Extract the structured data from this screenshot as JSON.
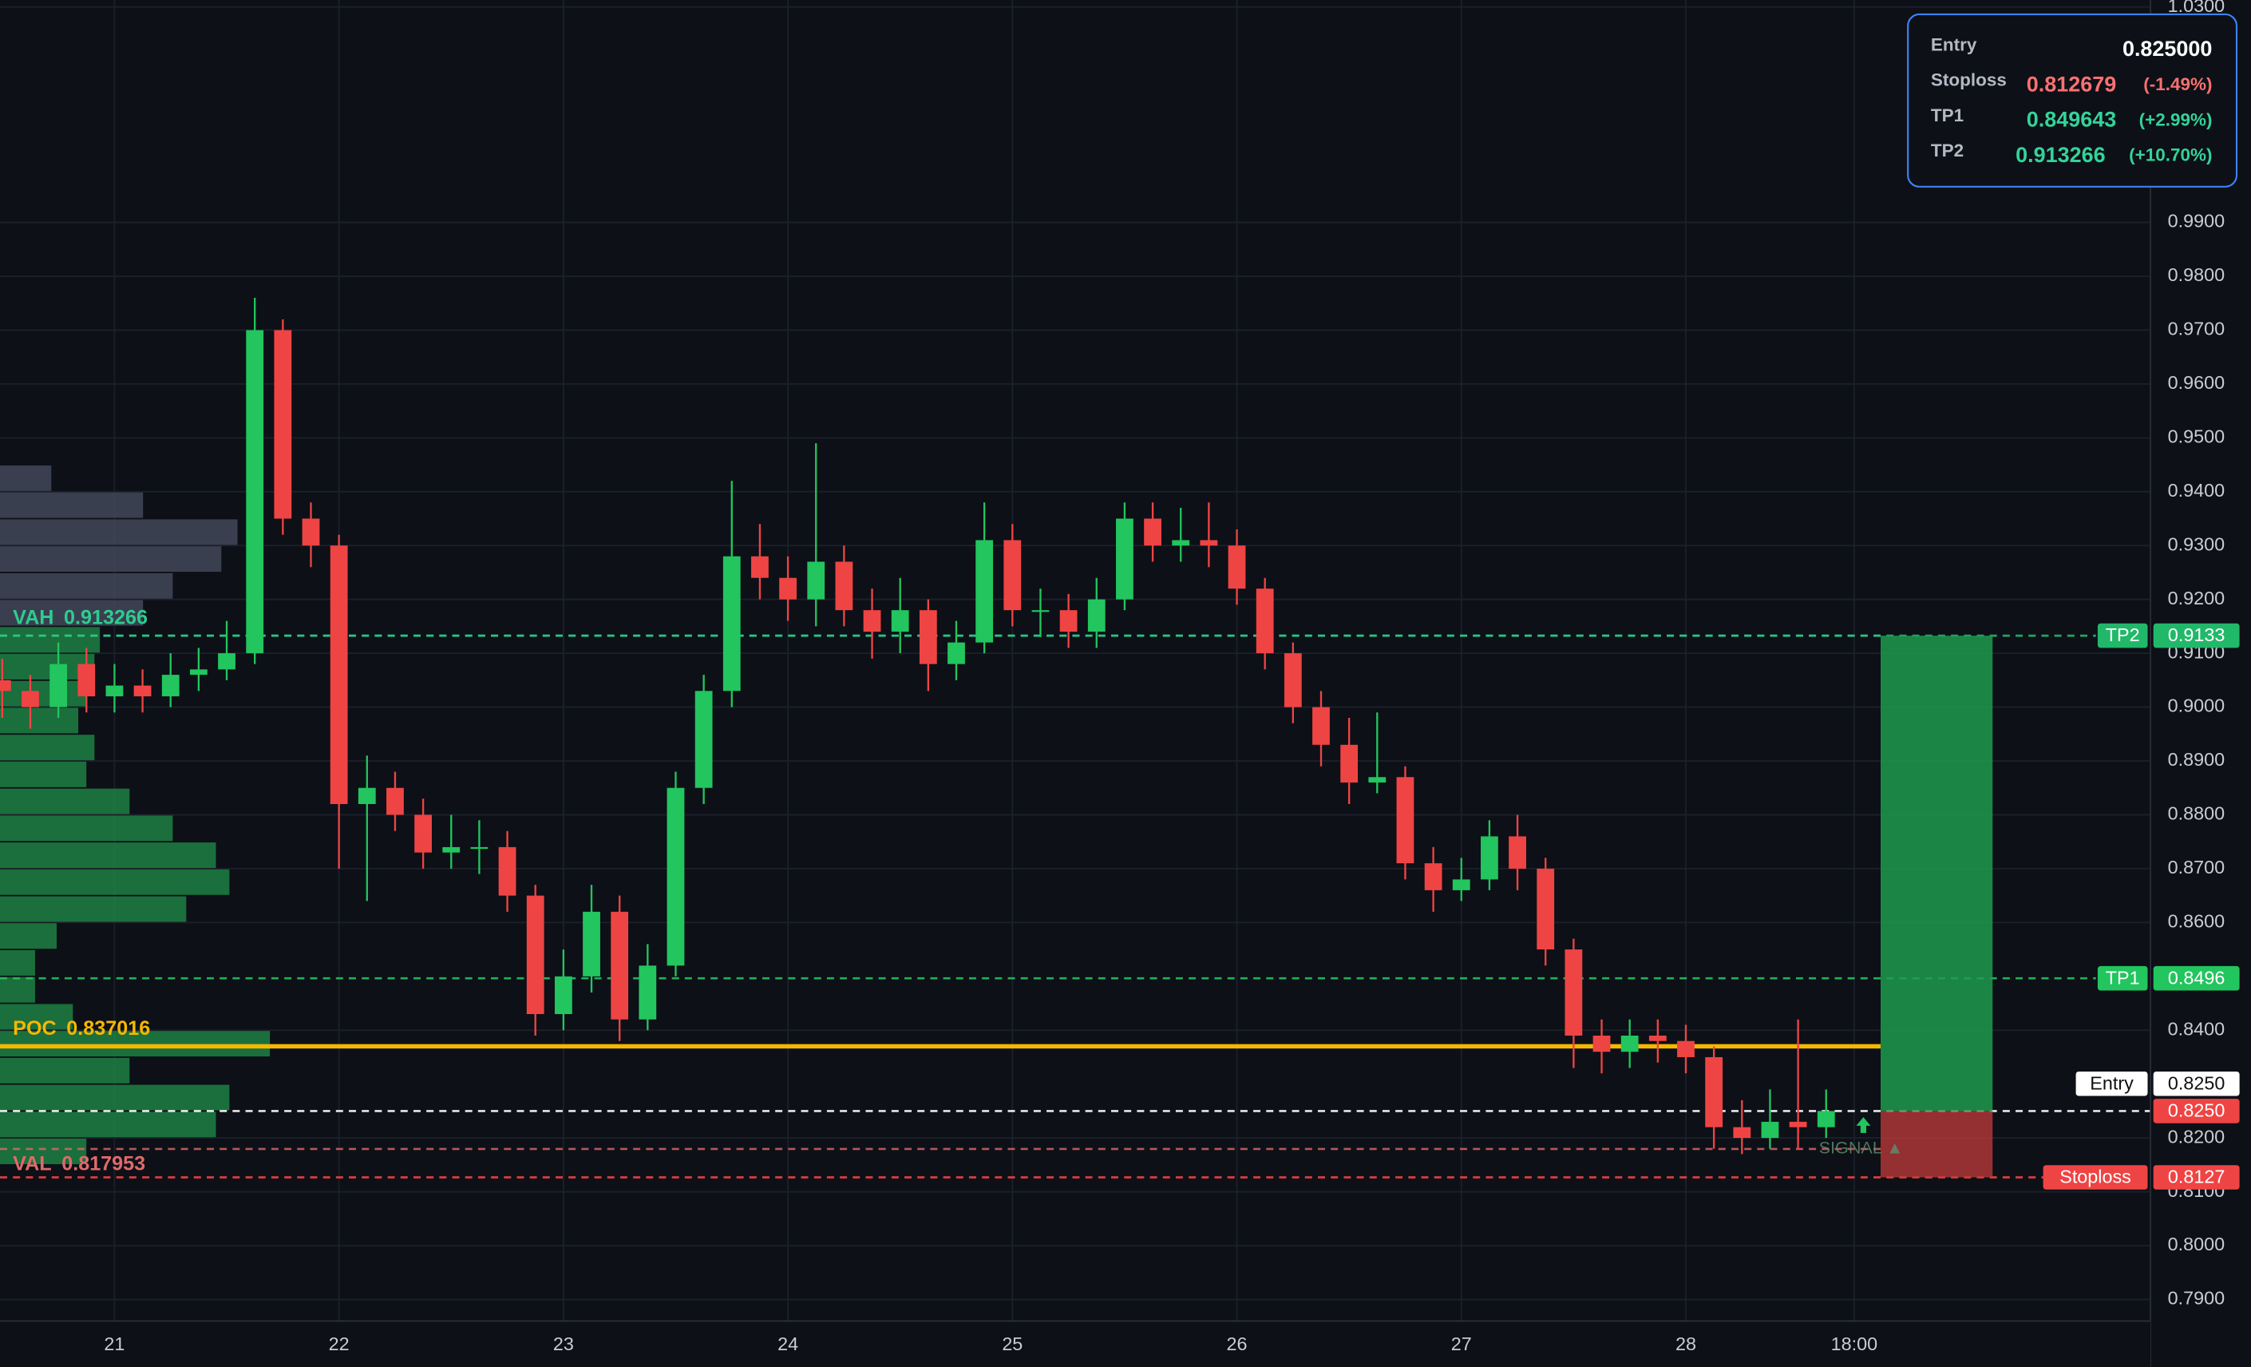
{
  "chart_data": {
    "type": "candlestick",
    "x": [
      20.5,
      20.625,
      20.75,
      20.875,
      21,
      21.125,
      21.25,
      21.375,
      21.5,
      21.625,
      21.75,
      21.875,
      22,
      22.125,
      22.25,
      22.375,
      22.5,
      22.625,
      22.75,
      22.875,
      23,
      23.125,
      23.25,
      23.375,
      23.5,
      23.625,
      23.75,
      23.875,
      24,
      24.125,
      24.25,
      24.375,
      24.5,
      24.625,
      24.75,
      24.875,
      25,
      25.125,
      25.25,
      25.375,
      25.5,
      25.625,
      25.75,
      25.875,
      26,
      26.125,
      26.25,
      26.375,
      26.5,
      26.625,
      26.75,
      26.875,
      27,
      27.125,
      27.25,
      27.375,
      27.5,
      27.625,
      27.75,
      27.875,
      28,
      28.125,
      28.25,
      28.375,
      28.5,
      28.625
    ],
    "open": [
      0.905,
      0.903,
      0.9,
      0.908,
      0.902,
      0.904,
      0.902,
      0.906,
      0.907,
      0.91,
      0.97,
      0.935,
      0.93,
      0.882,
      0.885,
      0.88,
      0.873,
      0.874,
      0.874,
      0.865,
      0.843,
      0.85,
      0.862,
      0.842,
      0.852,
      0.885,
      0.903,
      0.928,
      0.924,
      0.92,
      0.927,
      0.918,
      0.914,
      0.918,
      0.908,
      0.912,
      0.931,
      0.918,
      0.918,
      0.914,
      0.92,
      0.935,
      0.93,
      0.931,
      0.93,
      0.922,
      0.91,
      0.9,
      0.893,
      0.886,
      0.887,
      0.871,
      0.866,
      0.868,
      0.876,
      0.87,
      0.855,
      0.839,
      0.836,
      0.839,
      0.838,
      0.835,
      0.822,
      0.82,
      0.823,
      0.822
    ],
    "high": [
      0.909,
      0.906,
      0.912,
      0.911,
      0.908,
      0.907,
      0.91,
      0.911,
      0.916,
      0.976,
      0.972,
      0.938,
      0.932,
      0.891,
      0.888,
      0.883,
      0.88,
      0.879,
      0.877,
      0.867,
      0.855,
      0.867,
      0.865,
      0.856,
      0.888,
      0.906,
      0.942,
      0.934,
      0.928,
      0.949,
      0.93,
      0.922,
      0.924,
      0.92,
      0.916,
      0.938,
      0.934,
      0.922,
      0.921,
      0.924,
      0.938,
      0.938,
      0.937,
      0.938,
      0.933,
      0.924,
      0.912,
      0.903,
      0.898,
      0.899,
      0.889,
      0.874,
      0.872,
      0.879,
      0.88,
      0.872,
      0.857,
      0.842,
      0.842,
      0.842,
      0.841,
      0.837,
      0.827,
      0.829,
      0.842,
      0.829
    ],
    "low": [
      0.898,
      0.896,
      0.898,
      0.899,
      0.899,
      0.899,
      0.9,
      0.903,
      0.905,
      0.908,
      0.932,
      0.926,
      0.87,
      0.864,
      0.877,
      0.87,
      0.87,
      0.869,
      0.862,
      0.839,
      0.84,
      0.847,
      0.838,
      0.84,
      0.85,
      0.882,
      0.9,
      0.92,
      0.916,
      0.915,
      0.915,
      0.909,
      0.91,
      0.903,
      0.905,
      0.91,
      0.915,
      0.913,
      0.911,
      0.911,
      0.918,
      0.927,
      0.927,
      0.926,
      0.919,
      0.907,
      0.897,
      0.889,
      0.882,
      0.884,
      0.868,
      0.862,
      0.864,
      0.866,
      0.866,
      0.852,
      0.833,
      0.832,
      0.833,
      0.834,
      0.832,
      0.818,
      0.817,
      0.818,
      0.818,
      0.82
    ],
    "close": [
      0.903,
      0.9,
      0.908,
      0.902,
      0.904,
      0.902,
      0.906,
      0.907,
      0.91,
      0.97,
      0.935,
      0.93,
      0.882,
      0.885,
      0.88,
      0.873,
      0.874,
      0.874,
      0.865,
      0.843,
      0.85,
      0.862,
      0.842,
      0.852,
      0.885,
      0.903,
      0.928,
      0.924,
      0.92,
      0.927,
      0.918,
      0.914,
      0.918,
      0.908,
      0.912,
      0.931,
      0.918,
      0.918,
      0.914,
      0.92,
      0.935,
      0.93,
      0.931,
      0.93,
      0.922,
      0.91,
      0.9,
      0.893,
      0.886,
      0.887,
      0.871,
      0.866,
      0.868,
      0.876,
      0.87,
      0.855,
      0.839,
      0.836,
      0.839,
      0.838,
      0.835,
      0.822,
      0.82,
      0.823,
      0.822,
      0.825
    ],
    "up_color": "#22c55e",
    "down_color": "#ef4444",
    "xlim": [
      20.49,
      30.07
    ],
    "xticks": [
      21,
      22,
      23,
      24,
      25,
      26,
      27,
      28,
      {
        "value": 28.75,
        "label": "18:00"
      }
    ],
    "ylim": [
      0.786,
      1.0313
    ],
    "yticks": [
      {
        "value": 1.03,
        "label": "1.0300"
      },
      {
        "value": 0.99,
        "label": "0.9900"
      },
      {
        "value": 0.98,
        "label": "0.9800"
      },
      {
        "value": 0.97,
        "label": "0.9700"
      },
      {
        "value": 0.96,
        "label": "0.9600"
      },
      {
        "value": 0.95,
        "label": "0.9500"
      },
      {
        "value": 0.94,
        "label": "0.9400"
      },
      {
        "value": 0.93,
        "label": "0.9300"
      },
      {
        "value": 0.92,
        "label": "0.9200"
      },
      {
        "value": 0.91,
        "label": "0.9100"
      },
      {
        "value": 0.9,
        "label": "0.9000"
      },
      {
        "value": 0.89,
        "label": "0.8900"
      },
      {
        "value": 0.88,
        "label": "0.8800"
      },
      {
        "value": 0.87,
        "label": "0.8700"
      },
      {
        "value": 0.86,
        "label": "0.8600"
      },
      {
        "value": 0.84,
        "label": "0.8400"
      },
      {
        "value": 0.82,
        "label": "0.8200"
      },
      {
        "value": 0.81,
        "label": "0.8100"
      },
      {
        "value": 0.8,
        "label": "0.8000"
      },
      {
        "value": 0.79,
        "label": "0.7900"
      }
    ],
    "grid": true,
    "volume_profile": {
      "prices": [
        0.815,
        0.82,
        0.825,
        0.83,
        0.835,
        0.84,
        0.845,
        0.85,
        0.855,
        0.86,
        0.865,
        0.87,
        0.875,
        0.88,
        0.885,
        0.89,
        0.895,
        0.9,
        0.905,
        0.91,
        0.915,
        0.92,
        0.925,
        0.93,
        0.935,
        0.94
      ],
      "volumes": [
        32,
        80,
        85,
        48,
        100,
        27,
        13,
        13,
        21,
        69,
        85,
        80,
        64,
        48,
        32,
        35,
        29,
        32,
        35,
        37,
        53,
        64,
        82,
        88,
        53,
        19
      ],
      "value_area_color": "#1d7a40",
      "outside_color": "#3f4556"
    },
    "profile_levels": [
      {
        "name": "VAH",
        "value": 0.913266,
        "color": "#2ecc8f"
      },
      {
        "name": "POC",
        "value": 0.837016,
        "color": "#f5b800"
      },
      {
        "name": "VAL",
        "value": 0.817953,
        "color": "#e06a6a"
      }
    ],
    "levels": [
      {
        "name": "TP2",
        "value": 0.913266,
        "price_label": "0.9133",
        "color": "#22b86a"
      },
      {
        "name": "TP1",
        "value": 0.849643,
        "price_label": "0.8496",
        "color": "#22c55e"
      },
      {
        "name": "Entry",
        "value": 0.825,
        "price_label": "0.8250",
        "color": "#ffffff"
      },
      {
        "name": "Stoploss",
        "value": 0.812679,
        "price_label": "0.8127",
        "color": "#ef4444"
      }
    ],
    "last_price": {
      "value": 0.825,
      "label": "0.8250",
      "color": "#ef4444"
    },
    "panel": [
      {
        "name": "Entry",
        "price": "0.825000",
        "color": "#ffffff"
      },
      {
        "name": "Stoploss",
        "price": "0.812679",
        "change": "(-1.49%)",
        "color": "#f87171"
      },
      {
        "name": "TP1",
        "price": "0.849643",
        "change": "(+2.99%)",
        "color": "#34d399"
      },
      {
        "name": "TP2",
        "price": "0.913266",
        "change": "(+10.70%)",
        "color": "#34d399"
      }
    ],
    "signal": "SIGNAL ▲"
  }
}
